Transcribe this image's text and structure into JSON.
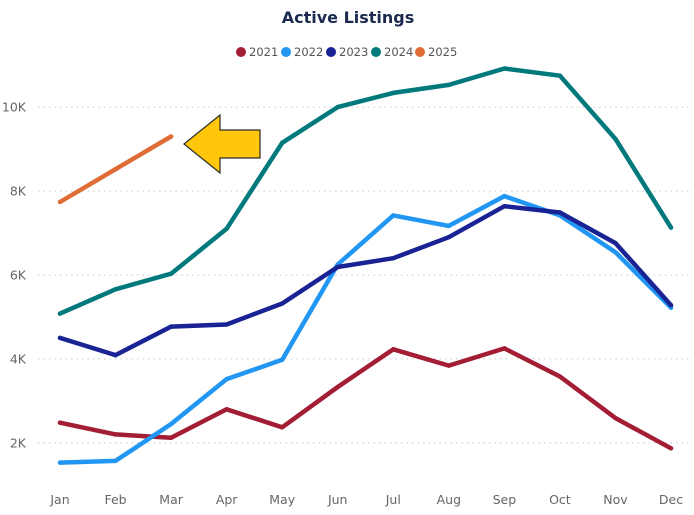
{
  "chart_data": {
    "type": "line",
    "title": "Active Listings",
    "xlabel": "",
    "ylabel": "",
    "categories": [
      "Jan",
      "Feb",
      "Mar",
      "Apr",
      "May",
      "Jun",
      "Jul",
      "Aug",
      "Sep",
      "Oct",
      "Nov",
      "Dec"
    ],
    "ylim": [
      1000,
      11600
    ],
    "yticks": [
      2000,
      4000,
      6000,
      8000,
      10000
    ],
    "ytick_labels": [
      "2K",
      "4K",
      "6K",
      "8K",
      "10K"
    ],
    "grid": true,
    "legend_position": "top-center",
    "series": [
      {
        "name": "2021",
        "color": "#a31d35",
        "values": [
          2480,
          2200,
          2120,
          2800,
          2370,
          3330,
          4230,
          3840,
          4250,
          3580,
          2590,
          1870
        ]
      },
      {
        "name": "2022",
        "color": "#2196f3",
        "values": [
          1530,
          1570,
          2450,
          3520,
          3980,
          6250,
          7420,
          7170,
          7880,
          7420,
          6540,
          5220
        ]
      },
      {
        "name": "2023",
        "color": "#1a2393",
        "values": [
          4500,
          4090,
          4770,
          4820,
          5320,
          6190,
          6400,
          6900,
          7640,
          7490,
          6760,
          5280
        ]
      },
      {
        "name": "2024",
        "color": "#00797c",
        "values": [
          5080,
          5660,
          6030,
          7100,
          9150,
          10000,
          10340,
          10530,
          10920,
          10750,
          9240,
          7130
        ]
      },
      {
        "name": "2025",
        "color": "#e06c35",
        "values": [
          7740,
          8520,
          9300,
          null,
          null,
          null,
          null,
          null,
          null,
          null,
          null,
          null
        ]
      }
    ],
    "annotation": {
      "type": "arrow",
      "color": "#ffc60a",
      "points_to": "2025"
    }
  }
}
